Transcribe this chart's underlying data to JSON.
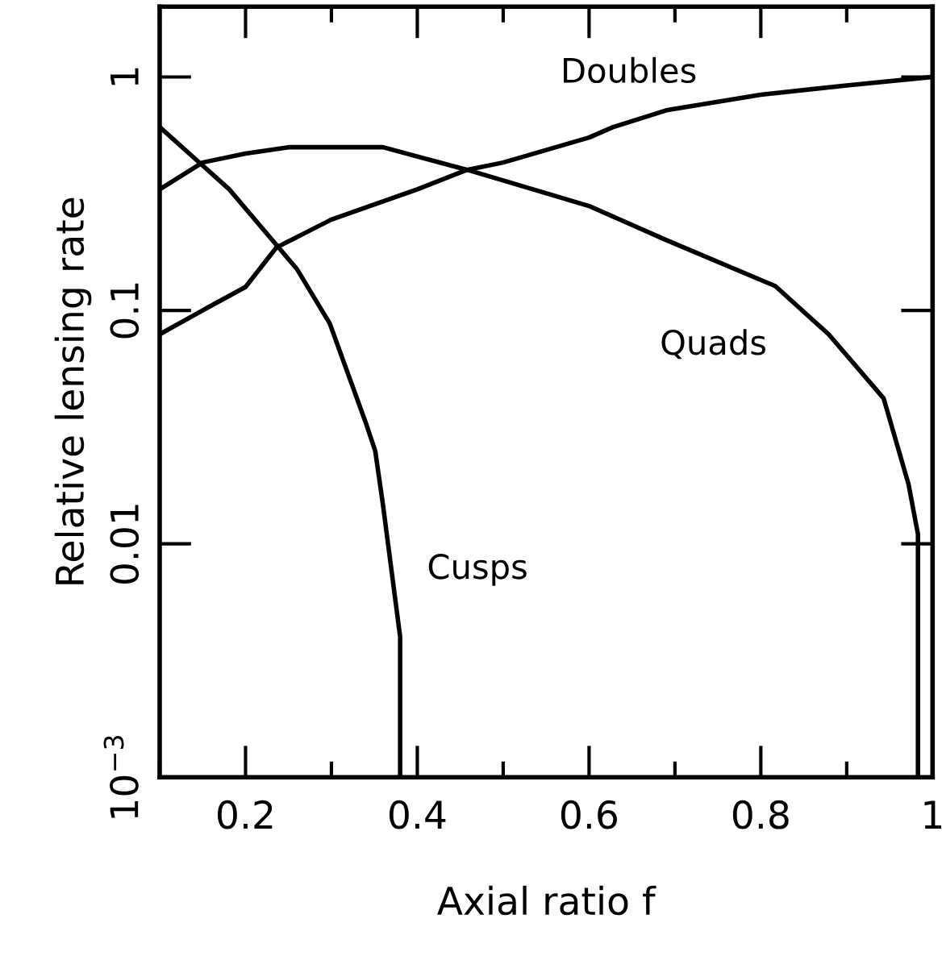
{
  "chart_data": {
    "type": "line",
    "xlabel": "Axial ratio f",
    "ylabel": "Relative lensing rate",
    "log": "y",
    "xlim": [
      0.1,
      1
    ],
    "ylim": [
      0.001,
      2
    ],
    "xticks": [
      0.2,
      0.4,
      0.6,
      0.8,
      1
    ],
    "yticks": [
      {
        "value": 0.001,
        "label": "10$^{−3}$"
      },
      0.01,
      0.1,
      1
    ],
    "grid": false,
    "marker": "none",
    "line_style": "solid",
    "series": [
      {
        "name": "Doubles",
        "color": "#000000",
        "x": [
          0.1,
          0.15,
          0.2,
          0.236,
          0.3,
          0.4,
          0.458,
          0.5,
          0.6,
          0.628,
          0.69,
          0.7,
          0.8,
          0.9,
          1.0
        ],
        "values": [
          0.079,
          0.1,
          0.126,
          0.186,
          0.245,
          0.33,
          0.4,
          0.43,
          0.55,
          0.61,
          0.72,
          0.73,
          0.84,
          0.92,
          1.0
        ]
      },
      {
        "name": "Quads",
        "color": "#000000",
        "x": [
          0.1,
          0.15,
          0.2,
          0.25,
          0.302,
          0.36,
          0.458,
          0.5,
          0.6,
          0.69,
          0.817,
          0.879,
          0.943,
          0.972,
          0.983,
          0.983
        ],
        "values": [
          0.33,
          0.43,
          0.47,
          0.5,
          0.5,
          0.5,
          0.4,
          0.36,
          0.28,
          0.2,
          0.127,
          0.079,
          0.042,
          0.018,
          0.011,
          0.001
        ]
      },
      {
        "name": "Cusps",
        "color": "#000000",
        "x": [
          0.1,
          0.181,
          0.26,
          0.298,
          0.34,
          0.351,
          0.36,
          0.38,
          0.38
        ],
        "values": [
          0.61,
          0.33,
          0.15,
          0.088,
          0.033,
          0.025,
          0.0147,
          0.004,
          0.001
        ]
      }
    ]
  }
}
